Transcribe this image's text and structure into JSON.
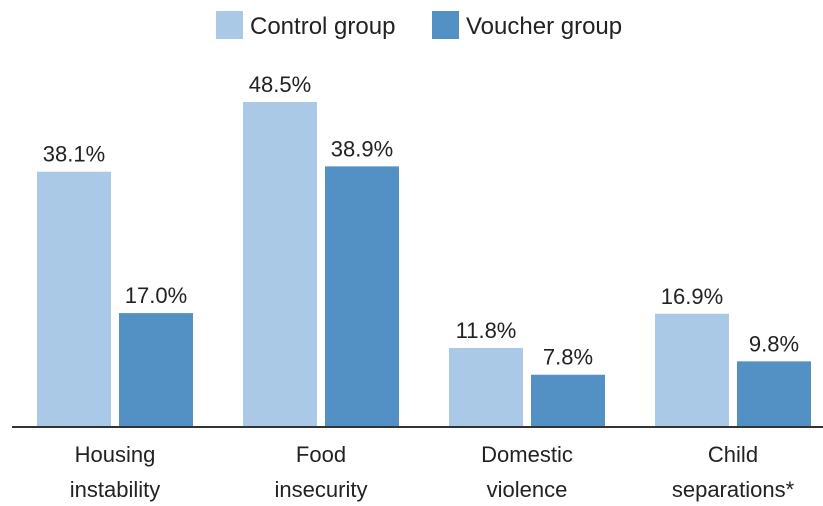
{
  "chart_data": {
    "type": "bar",
    "categories": [
      [
        "Housing",
        "instability"
      ],
      [
        "Food",
        "insecurity"
      ],
      [
        "Domestic",
        "violence"
      ],
      [
        "Child",
        "separations*"
      ]
    ],
    "series": [
      {
        "name": "Control group",
        "color": "#a9c9e6",
        "values": [
          38.1,
          48.5,
          11.8,
          16.9
        ],
        "labels": [
          "38.1%",
          "48.5%",
          "11.8%",
          "16.9%"
        ]
      },
      {
        "name": "Voucher group",
        "color": "#5390c4",
        "values": [
          17.0,
          38.9,
          7.8,
          9.8
        ],
        "labels": [
          "17.0%",
          "38.9%",
          "7.8%",
          "9.8%"
        ]
      }
    ],
    "ylim": [
      0,
      50
    ],
    "legend": "top-center",
    "grid": false
  }
}
